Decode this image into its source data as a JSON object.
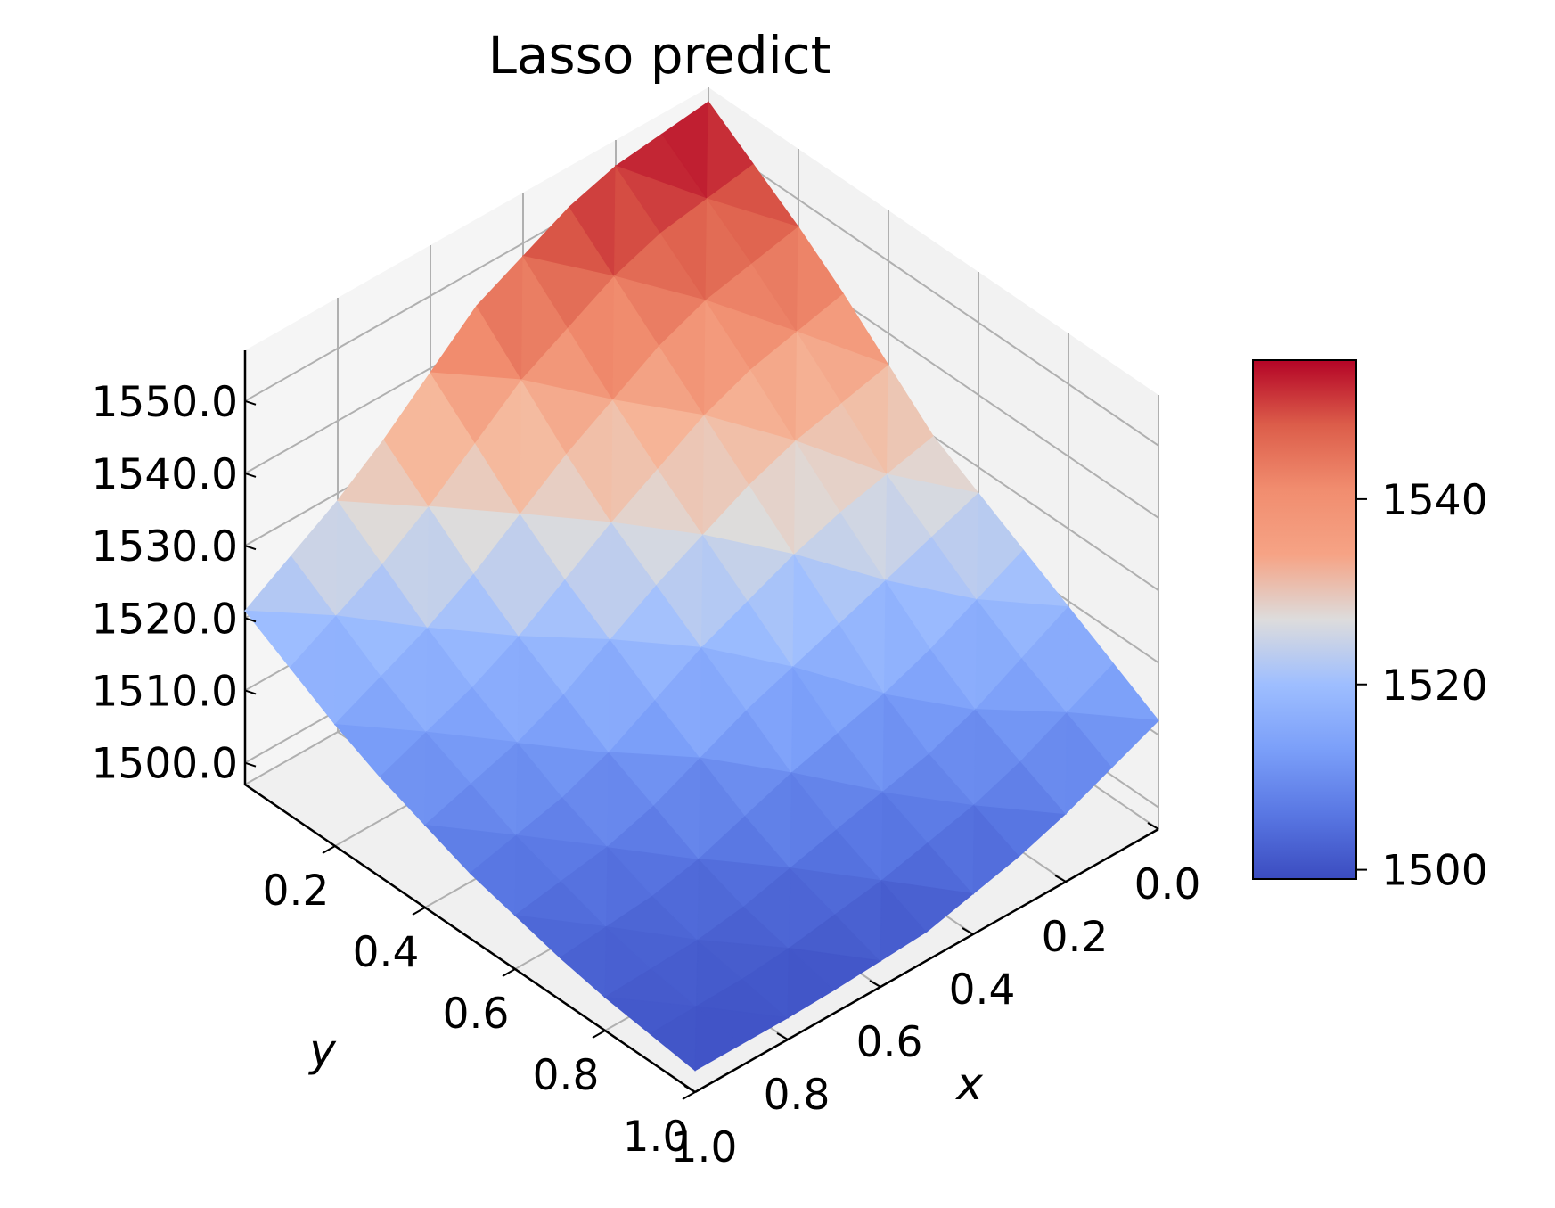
{
  "chart_data": {
    "type": "surface3d",
    "title": "Lasso predict",
    "xlabel": "x",
    "ylabel": "y",
    "zlabel": "",
    "x_ticks": [
      "0.0",
      "0.2",
      "0.4",
      "0.6",
      "0.8",
      "1.0"
    ],
    "y_ticks": [
      "0.2",
      "0.4",
      "0.6",
      "0.8",
      "1.0"
    ],
    "z_ticks": [
      "1500.0",
      "1510.0",
      "1520.0",
      "1530.0",
      "1540.0",
      "1550.0"
    ],
    "xlim": [
      0,
      1
    ],
    "ylim": [
      0,
      1
    ],
    "zlim": [
      1497,
      1557
    ],
    "colormap": "coolwarm",
    "colorbar": {
      "ticks": [
        "1500",
        "1520",
        "1540"
      ],
      "range": [
        1499,
        1555
      ]
    },
    "grid": true,
    "x": [
      0.0,
      0.25,
      0.5,
      0.75,
      1.0
    ],
    "y": [
      0.0,
      0.25,
      0.5,
      0.75,
      1.0
    ],
    "z": [
      [
        1555,
        1544,
        1530,
        1521,
        1512
      ],
      [
        1553,
        1540,
        1526,
        1512,
        1505
      ],
      [
        1545,
        1530,
        1519,
        1508,
        1501
      ],
      [
        1531,
        1519,
        1510,
        1503,
        1500
      ],
      [
        1521,
        1512,
        1506,
        1502,
        1500
      ]
    ]
  },
  "colors": {
    "pane": "#f2f2f2",
    "grid": "#b0b0b0",
    "axis": "#000000"
  }
}
